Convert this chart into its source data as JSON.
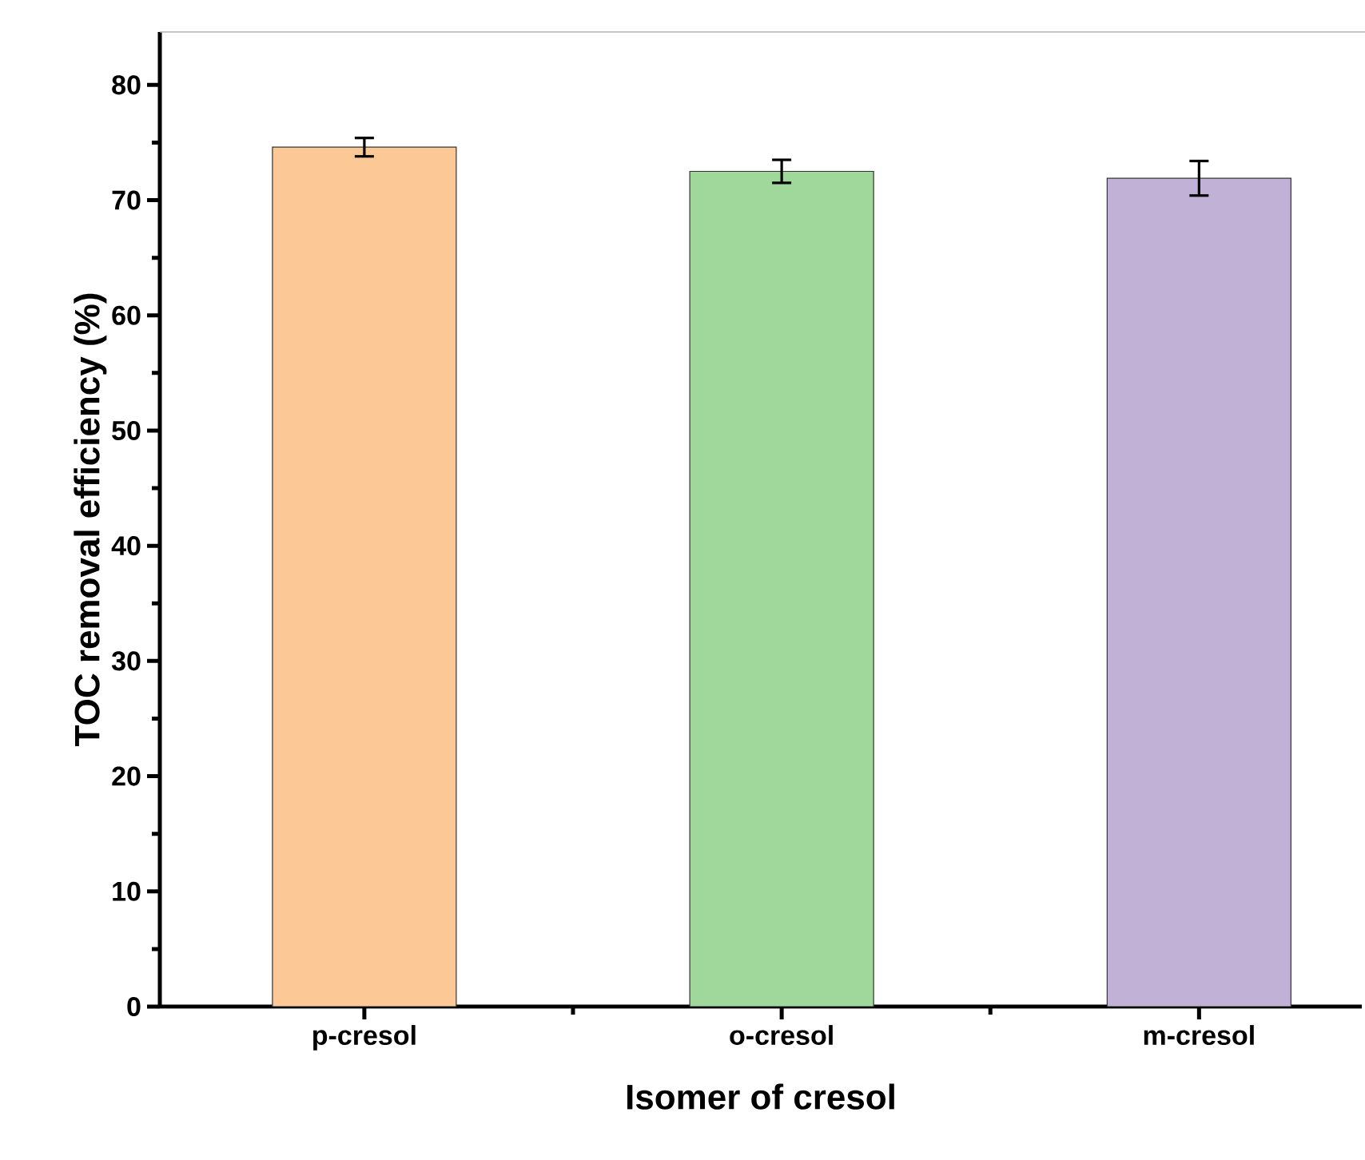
{
  "chart_data": {
    "type": "bar",
    "xlabel": "Isomer of cresol",
    "ylabel": "TOC removal efficiency (%)",
    "categories": [
      "p-cresol",
      "o-cresol",
      "m-cresol"
    ],
    "values": [
      74.6,
      72.5,
      71.9
    ],
    "errors": [
      0.8,
      1.0,
      1.5
    ],
    "colors": [
      "#fcc896",
      "#a0d89c",
      "#c1b1d6"
    ],
    "ylim": [
      0,
      84.6
    ],
    "yticks": [
      0,
      10,
      20,
      30,
      40,
      50,
      60,
      70,
      80
    ],
    "grid": false
  }
}
